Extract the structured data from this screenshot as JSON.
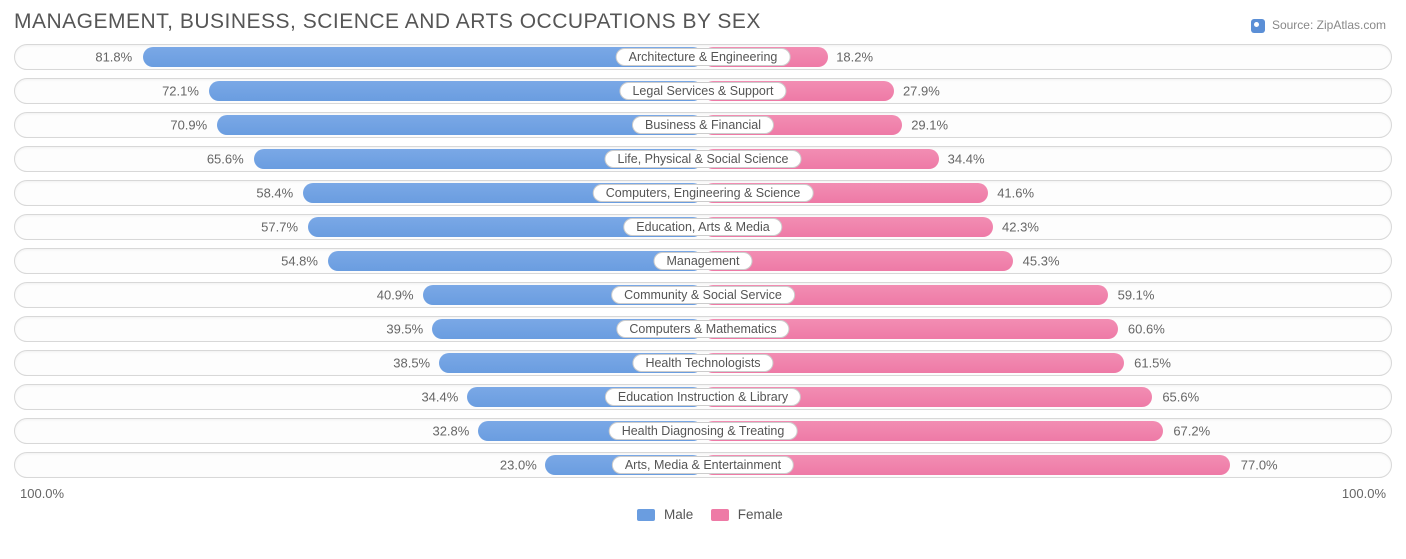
{
  "title": "MANAGEMENT, BUSINESS, SCIENCE AND ARTS OCCUPATIONS BY SEX",
  "source_label": "Source: ZipAtlas.com",
  "chart": {
    "type": "diverging-bar",
    "male_color": "#6a9de0",
    "female_color": "#ee7aa6",
    "track_border": "#d8d8d8",
    "background": "#ffffff",
    "label_fontsize": 12.5,
    "pct_fontsize": 13,
    "axis_left": "100.0%",
    "axis_right": "100.0%",
    "legend": {
      "male": "Male",
      "female": "Female"
    },
    "rows": [
      {
        "label": "Architecture & Engineering",
        "male": 81.8,
        "female": 18.2
      },
      {
        "label": "Legal Services & Support",
        "male": 72.1,
        "female": 27.9
      },
      {
        "label": "Business & Financial",
        "male": 70.9,
        "female": 29.1
      },
      {
        "label": "Life, Physical & Social Science",
        "male": 65.6,
        "female": 34.4
      },
      {
        "label": "Computers, Engineering & Science",
        "male": 58.4,
        "female": 41.6
      },
      {
        "label": "Education, Arts & Media",
        "male": 57.7,
        "female": 42.3
      },
      {
        "label": "Management",
        "male": 54.8,
        "female": 45.3
      },
      {
        "label": "Community & Social Service",
        "male": 40.9,
        "female": 59.1
      },
      {
        "label": "Computers & Mathematics",
        "male": 39.5,
        "female": 60.6
      },
      {
        "label": "Health Technologists",
        "male": 38.5,
        "female": 61.5
      },
      {
        "label": "Education Instruction & Library",
        "male": 34.4,
        "female": 65.6
      },
      {
        "label": "Health Diagnosing & Treating",
        "male": 32.8,
        "female": 67.2
      },
      {
        "label": "Arts, Media & Entertainment",
        "male": 23.0,
        "female": 77.0
      }
    ]
  }
}
